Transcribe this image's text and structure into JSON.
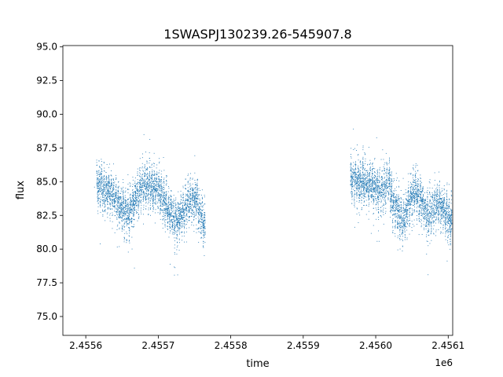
{
  "chart_data": {
    "type": "scatter",
    "title": "1SWASPJ130239.26-545907.8",
    "xlabel": "time",
    "ylabel": "flux",
    "x_offset_label": "1e6",
    "xlim": [
      2455568.4,
      2456106.2
    ],
    "ylim": [
      73.6,
      95.1
    ],
    "x_ticks": [
      2455600,
      2455700,
      2455800,
      2455900,
      2456000,
      2456100
    ],
    "x_tick_labels": [
      "2.4556",
      "2.4557",
      "2.4558",
      "2.4559",
      "2.4560",
      "2.4561"
    ],
    "y_ticks": [
      75.0,
      77.5,
      80.0,
      82.5,
      85.0,
      87.5,
      90.0,
      92.5,
      95.0
    ],
    "y_tick_labels": [
      "75.0",
      "77.5",
      "80.0",
      "82.5",
      "85.0",
      "87.5",
      "90.0",
      "92.5",
      "95.0"
    ],
    "grid": false,
    "marker_color": "#1f77b4",
    "series": [
      {
        "segments": [
          {
            "x_range": [
              2455615,
              2455700
            ],
            "y_center": [
              84.8,
              84.0,
              82.5,
              84.8,
              84.5
            ]
          },
          {
            "x_range": [
              2455700,
              2455765
            ],
            "y_center": [
              84.5,
              83.0,
              82.0,
              83.2,
              83.8,
              81.5
            ]
          },
          {
            "x_range": [
              2455965,
              2456020
            ],
            "y_center": [
              85.2,
              85.0,
              84.8,
              84.2,
              85.0
            ]
          },
          {
            "x_range": [
              2456020,
              2456105
            ],
            "y_center": [
              84.0,
              82.0,
              84.5,
              82.5,
              83.5,
              82.0
            ]
          }
        ],
        "x": [
          2455612,
          2455620,
          2455628,
          2455636,
          2455644,
          2455652,
          2455660,
          2455668,
          2455676,
          2455684,
          2455692,
          2455700,
          2455708,
          2455716,
          2455724,
          2455732,
          2455740,
          2455748,
          2455756,
          2455762,
          2455968,
          2455976,
          2455984,
          2455992,
          2456000,
          2456008,
          2456016,
          2456024,
          2456032,
          2456040,
          2456048,
          2456056,
          2456064,
          2456072,
          2456080,
          2456088,
          2456096,
          2456104
        ],
        "y": [
          84.6,
          85.2,
          83.8,
          83.0,
          81.8,
          84.2,
          83.5,
          84.9,
          85.1,
          84.3,
          84.6,
          84.2,
          83.0,
          82.1,
          83.1,
          82.4,
          82.0,
          83.6,
          84.5,
          81.8,
          85.3,
          85.0,
          84.9,
          85.2,
          84.8,
          84.2,
          84.6,
          85.0,
          83.2,
          82.3,
          84.6,
          82.8,
          82.6,
          83.2,
          84.0,
          82.1,
          81.9,
          83.4
        ]
      }
    ]
  }
}
